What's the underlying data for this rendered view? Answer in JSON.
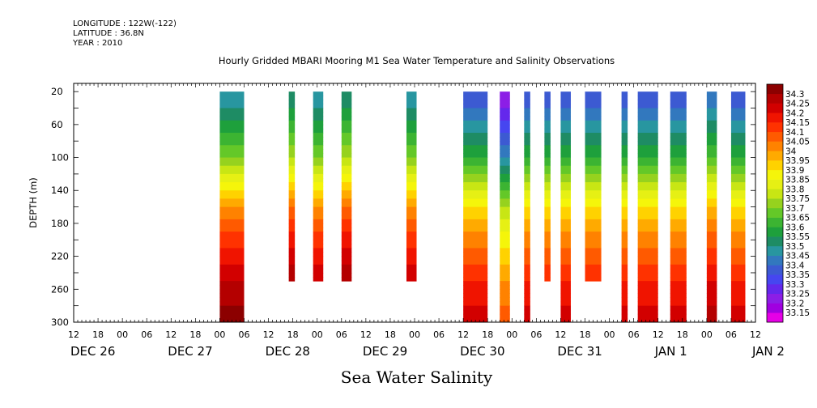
{
  "meta": {
    "longitude": "LONGITUDE : 122W(-122)",
    "latitude": "LATITUDE : 36.8N",
    "year": "YEAR : 2010"
  },
  "footer_label": "Sea Water Salinity",
  "chart_data": {
    "type": "heatmap",
    "title": "Hourly Gridded MBARI Mooring M1 Sea Water Temperature and Salinity Observations",
    "xlabel": "",
    "ylabel": "DEPTH (m)",
    "ylim": [
      300,
      10
    ],
    "y_ticks": [
      20,
      60,
      100,
      140,
      180,
      220,
      260,
      300
    ],
    "x_range_hours": [
      -12,
      156
    ],
    "x_hour_ticks": [
      -12,
      -6,
      0,
      6,
      12,
      18,
      24,
      30,
      36,
      42,
      48,
      54,
      60,
      66,
      72,
      78,
      84,
      90,
      96,
      102,
      108,
      114,
      120,
      126,
      132,
      138,
      144,
      150,
      156
    ],
    "x_hour_labels": [
      "12",
      "18",
      "00",
      "06",
      "12",
      "18",
      "00",
      "06",
      "12",
      "18",
      "00",
      "06",
      "12",
      "18",
      "00",
      "06",
      "12",
      "18",
      "00",
      "06",
      "12",
      "18",
      "00",
      "06",
      "12",
      "18",
      "00",
      "06",
      "12"
    ],
    "date_labels": [
      {
        "label": "DEC 26",
        "hour": -12
      },
      {
        "label": "DEC 27",
        "hour": 12
      },
      {
        "label": "DEC 28",
        "hour": 36
      },
      {
        "label": "DEC 29",
        "hour": 60
      },
      {
        "label": "DEC 30",
        "hour": 84
      },
      {
        "label": "DEC 31",
        "hour": 108
      },
      {
        "label": "JAN  1",
        "hour": 132
      },
      {
        "label": "JAN  2",
        "hour": 156
      }
    ],
    "colorbar": {
      "levels": [
        33.15,
        33.2,
        33.25,
        33.3,
        33.35,
        33.4,
        33.45,
        33.5,
        33.55,
        33.6,
        33.65,
        33.7,
        33.75,
        33.8,
        33.85,
        33.9,
        33.95,
        34,
        34.05,
        34.1,
        34.15,
        34.2,
        34.25,
        34.3
      ],
      "labels": [
        "33.15",
        "33.2",
        "33.25",
        "33.3",
        "33.35",
        "33.4",
        "33.45",
        "33.5",
        "33.55",
        "33.6",
        "33.65",
        "33.7",
        "33.75",
        "33.8",
        "33.85",
        "33.9",
        "33.95",
        "34",
        "34.05",
        "34.1",
        "34.15",
        "34.2",
        "34.25",
        "34.3"
      ],
      "colors": [
        "#e600e6",
        "#a000e0",
        "#8c1ee6",
        "#6428ec",
        "#4646f0",
        "#3c5ad2",
        "#3278be",
        "#2896a0",
        "#1e8c64",
        "#1ea03c",
        "#3cb432",
        "#64c828",
        "#96d21e",
        "#c8e614",
        "#e6f014",
        "#f5f50a",
        "#ffd200",
        "#ffaa00",
        "#ff8200",
        "#ff5a00",
        "#ff3200",
        "#f01400",
        "#d20000",
        "#b40000",
        "#8c0000"
      ]
    },
    "series": [
      {
        "start_hour": 24,
        "end_hour": 30,
        "max_depth": 300,
        "top_salinity": 33.45
      },
      {
        "start_hour": 41,
        "end_hour": 42.5,
        "max_depth": 250,
        "top_salinity": 33.5
      },
      {
        "start_hour": 47,
        "end_hour": 49.5,
        "max_depth": 250,
        "top_salinity": 33.45
      },
      {
        "start_hour": 54,
        "end_hour": 56.5,
        "max_depth": 250,
        "top_salinity": 33.5
      },
      {
        "start_hour": 70,
        "end_hour": 72.5,
        "max_depth": 250,
        "top_salinity": 33.45
      },
      {
        "start_hour": 84,
        "end_hour": 90,
        "max_depth": 300,
        "top_salinity": 33.35
      },
      {
        "start_hour": 93,
        "end_hour": 95.5,
        "max_depth": 300,
        "top_salinity": 33.2
      },
      {
        "start_hour": 99,
        "end_hour": 100.5,
        "max_depth": 300,
        "top_salinity": 33.35
      },
      {
        "start_hour": 104,
        "end_hour": 105.5,
        "max_depth": 250,
        "top_salinity": 33.35
      },
      {
        "start_hour": 108,
        "end_hour": 110.5,
        "max_depth": 300,
        "top_salinity": 33.35
      },
      {
        "start_hour": 114,
        "end_hour": 118,
        "max_depth": 250,
        "top_salinity": 33.35
      },
      {
        "start_hour": 123,
        "end_hour": 124.5,
        "max_depth": 300,
        "top_salinity": 33.35
      },
      {
        "start_hour": 127,
        "end_hour": 132,
        "max_depth": 300,
        "top_salinity": 33.35
      },
      {
        "start_hour": 135,
        "end_hour": 139,
        "max_depth": 300,
        "top_salinity": 33.35
      },
      {
        "start_hour": 144,
        "end_hour": 146.5,
        "max_depth": 300,
        "top_salinity": 33.4
      },
      {
        "start_hour": 150,
        "end_hour": 153.5,
        "max_depth": 300,
        "top_salinity": 33.35
      }
    ],
    "profile_depths": [
      10,
      40,
      70,
      100,
      120,
      140,
      160,
      180,
      200,
      220,
      240,
      260,
      280,
      300
    ],
    "profile_offsets": [
      0.0,
      0.05,
      0.15,
      0.25,
      0.35,
      0.45,
      0.55,
      0.62,
      0.68,
      0.72,
      0.78,
      0.82,
      0.85,
      0.85
    ],
    "grid": false,
    "legend": "right"
  }
}
